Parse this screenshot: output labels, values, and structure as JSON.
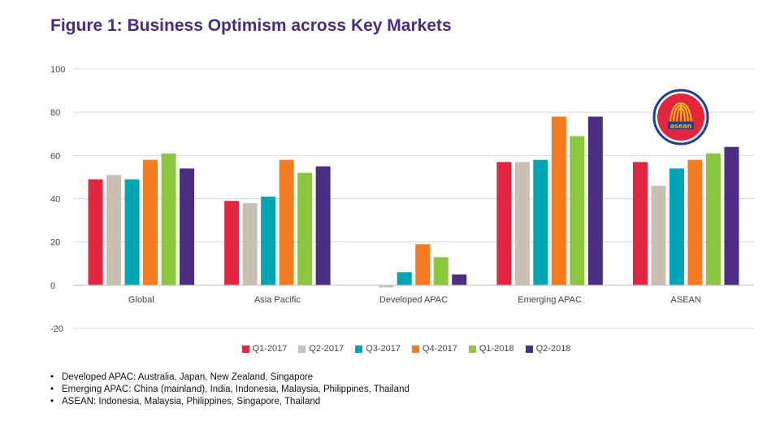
{
  "title": "Figure 1: Business Optimism across Key Markets",
  "colors": {
    "title": "#4a2c82",
    "series": [
      "#e3263f",
      "#c9bfb3",
      "#00a5b5",
      "#f47b20",
      "#8cc63f",
      "#4b2e83"
    ]
  },
  "chart_data": {
    "type": "bar",
    "title": "Figure 1: Business Optimism across Key Markets",
    "categories": [
      "Global",
      "Asia Pacific",
      "Developed APAC",
      "Emerging APAC",
      "ASEAN"
    ],
    "series": [
      {
        "name": "Q1-2017",
        "values": [
          49,
          39,
          null,
          57,
          57
        ]
      },
      {
        "name": "Q2-2017",
        "values": [
          51,
          38,
          -1,
          57,
          46
        ]
      },
      {
        "name": "Q3-2017",
        "values": [
          49,
          41,
          6,
          58,
          54
        ]
      },
      {
        "name": "Q4-2017",
        "values": [
          58,
          58,
          19,
          78,
          58
        ]
      },
      {
        "name": "Q1-2018",
        "values": [
          61,
          52,
          13,
          69,
          61
        ]
      },
      {
        "name": "Q2-2018",
        "values": [
          54,
          55,
          5,
          78,
          64
        ]
      }
    ],
    "yticks": [
      100,
      80,
      60,
      40,
      20,
      0,
      -20
    ],
    "ylim": [
      -20,
      100
    ],
    "grid": true,
    "legend": "bottom"
  },
  "notes": [
    "Developed APAC: Australia, Japan, New Zealand, Singapore",
    "Emerging APAC: China (mainland), India, Indonesia, Malaysia, Philippines, Thailand",
    "ASEAN: Indonesia, Malaysia, Philippines, Singapore, Thailand"
  ],
  "logo": {
    "text": "asean",
    "icon": "asean-logo-icon"
  }
}
